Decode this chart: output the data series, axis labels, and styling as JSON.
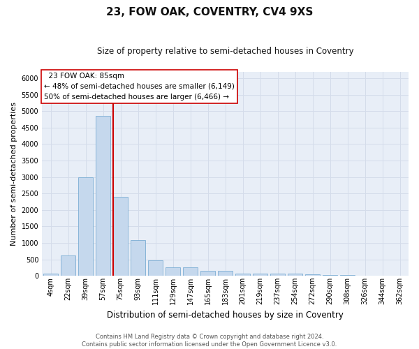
{
  "title": "23, FOW OAK, COVENTRY, CV4 9XS",
  "subtitle": "Size of property relative to semi-detached houses in Coventry",
  "xlabel": "Distribution of semi-detached houses by size in Coventry",
  "ylabel": "Number of semi-detached properties",
  "footer_line1": "Contains HM Land Registry data © Crown copyright and database right 2024.",
  "footer_line2": "Contains public sector information licensed under the Open Government Licence v3.0.",
  "bar_labels": [
    "4sqm",
    "22sqm",
    "39sqm",
    "57sqm",
    "75sqm",
    "93sqm",
    "111sqm",
    "129sqm",
    "147sqm",
    "165sqm",
    "183sqm",
    "201sqm",
    "219sqm",
    "237sqm",
    "254sqm",
    "272sqm",
    "290sqm",
    "308sqm",
    "326sqm",
    "344sqm",
    "362sqm"
  ],
  "bar_values": [
    60,
    620,
    3000,
    4850,
    2400,
    1080,
    470,
    255,
    255,
    150,
    150,
    80,
    75,
    60,
    60,
    40,
    30,
    30,
    0,
    0,
    0
  ],
  "bar_color": "#c5d8ed",
  "bar_edge_color": "#7aadd4",
  "vline_color": "#cc0000",
  "vline_x": 3.56,
  "annotation_title": "23 FOW OAK: 85sqm",
  "annotation_line2": "← 48% of semi-detached houses are smaller (6,149)",
  "annotation_line3": "50% of semi-detached houses are larger (6,466) →",
  "annotation_box_color": "#ffffff",
  "annotation_box_edge": "#cc0000",
  "ylim": [
    0,
    6200
  ],
  "yticks": [
    0,
    500,
    1000,
    1500,
    2000,
    2500,
    3000,
    3500,
    4000,
    4500,
    5000,
    5500,
    6000
  ],
  "grid_color": "#d4dcea",
  "plot_bg_color": "#e8eef7",
  "title_fontsize": 11,
  "subtitle_fontsize": 8.5,
  "ylabel_fontsize": 8,
  "xlabel_fontsize": 8.5,
  "tick_fontsize": 7,
  "footer_fontsize": 6,
  "ann_fontsize": 7.5
}
